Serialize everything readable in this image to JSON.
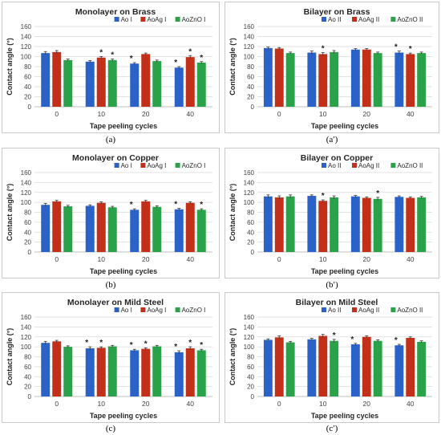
{
  "colors": {
    "ao": "#2a62c8",
    "aoag": "#c3301a",
    "aozno": "#2aa24a",
    "grid": "#d9d9d9",
    "axis": "#595959"
  },
  "chart_data": [
    {
      "type": "bar",
      "panel_label": "(a)",
      "title": "Monolayer on Brass",
      "xlabel": "Tape peeling cycles",
      "ylabel": "Contact  angle (°)",
      "categories": [
        "0",
        "10",
        "20",
        "40"
      ],
      "ylim": [
        0,
        160
      ],
      "yticks": [
        0,
        20,
        40,
        60,
        80,
        100,
        120,
        140,
        160
      ],
      "grid": true,
      "legend_position": "top-right",
      "series": [
        {
          "name": "Ao I",
          "values": [
            107,
            90,
            86,
            78
          ],
          "errors": [
            3,
            2,
            2,
            2
          ],
          "sig": [
            false,
            false,
            true,
            true
          ]
        },
        {
          "name": "AoAg I",
          "values": [
            109,
            98,
            105,
            99
          ],
          "errors": [
            3,
            2,
            2,
            3
          ],
          "sig": [
            false,
            true,
            false,
            true
          ]
        },
        {
          "name": "AoZnO I",
          "values": [
            93,
            93,
            91,
            88
          ],
          "errors": [
            2,
            2,
            2,
            2
          ],
          "sig": [
            false,
            true,
            false,
            true
          ]
        }
      ]
    },
    {
      "type": "bar",
      "panel_label": "(a′)",
      "title": "Bilayer on Brass",
      "xlabel": "Tape peeling cycles",
      "ylabel": "Contact  angle (°)",
      "categories": [
        "0",
        "10",
        "20",
        "40"
      ],
      "ylim": [
        0,
        160
      ],
      "yticks": [
        0,
        20,
        40,
        60,
        80,
        100,
        120,
        140,
        160
      ],
      "grid": true,
      "legend_position": "top-right",
      "series": [
        {
          "name": "Ao II",
          "values": [
            117,
            108,
            114,
            108
          ],
          "errors": [
            2,
            3,
            2,
            3
          ],
          "sig": [
            false,
            false,
            false,
            true
          ]
        },
        {
          "name": "AoAg II",
          "values": [
            116,
            105,
            114,
            105
          ],
          "errors": [
            2,
            3,
            2,
            2
          ],
          "sig": [
            false,
            true,
            false,
            true
          ]
        },
        {
          "name": "AoZnO II",
          "values": [
            107,
            109,
            107,
            107
          ],
          "errors": [
            2,
            3,
            2,
            2
          ],
          "sig": [
            false,
            false,
            false,
            false
          ]
        }
      ]
    },
    {
      "type": "bar",
      "panel_label": "(b)",
      "title": "Monolayer on Copper",
      "xlabel": "Tape peeling cycles",
      "ylabel": "Contact  angle (°)",
      "categories": [
        "0",
        "10",
        "20",
        "40"
      ],
      "ylim": [
        0,
        160
      ],
      "yticks": [
        0,
        20,
        40,
        60,
        80,
        100,
        120,
        140,
        160
      ],
      "grid": true,
      "legend_position": "top-right",
      "series": [
        {
          "name": "Ao I",
          "values": [
            95,
            93,
            85,
            86
          ],
          "errors": [
            3,
            2,
            2,
            2
          ],
          "sig": [
            false,
            false,
            true,
            true
          ]
        },
        {
          "name": "AoAg I",
          "values": [
            102,
            99,
            102,
            99
          ],
          "errors": [
            2,
            2,
            2,
            2
          ],
          "sig": [
            false,
            false,
            false,
            false
          ]
        },
        {
          "name": "AoZnO I",
          "values": [
            92,
            90,
            91,
            85
          ],
          "errors": [
            2,
            2,
            2,
            2
          ],
          "sig": [
            false,
            false,
            false,
            true
          ]
        }
      ]
    },
    {
      "type": "bar",
      "panel_label": "(b′)",
      "title": "Bilayer on Copper",
      "xlabel": "Tape peeling cycles",
      "ylabel": "Contact  angle (°)",
      "categories": [
        "0",
        "10",
        "20",
        "40"
      ],
      "ylim": [
        0,
        160
      ],
      "yticks": [
        0,
        20,
        40,
        60,
        80,
        100,
        120,
        140,
        160
      ],
      "grid": true,
      "legend_position": "top-right",
      "series": [
        {
          "name": "Ao II",
          "values": [
            112,
            113,
            112,
            111
          ],
          "errors": [
            3,
            2,
            2,
            2
          ],
          "sig": [
            false,
            false,
            false,
            false
          ]
        },
        {
          "name": "AoAg II",
          "values": [
            110,
            103,
            109,
            109
          ],
          "errors": [
            3,
            2,
            2,
            2
          ],
          "sig": [
            false,
            true,
            false,
            false
          ]
        },
        {
          "name": "AoZnO II",
          "values": [
            112,
            110,
            107,
            110
          ],
          "errors": [
            3,
            3,
            3,
            2
          ],
          "sig": [
            false,
            false,
            true,
            false
          ]
        }
      ]
    },
    {
      "type": "bar",
      "panel_label": "(c)",
      "title": "Monolayer on Mild Steel",
      "xlabel": "Tape peeling cycles",
      "ylabel": "Contact  angle (°)",
      "categories": [
        "0",
        "10",
        "20",
        "40"
      ],
      "ylim": [
        0,
        160
      ],
      "yticks": [
        0,
        20,
        40,
        60,
        80,
        100,
        120,
        140,
        160
      ],
      "grid": true,
      "legend_position": "top-right",
      "series": [
        {
          "name": "Ao I",
          "values": [
            108,
            97,
            93,
            89
          ],
          "errors": [
            3,
            3,
            2,
            3
          ],
          "sig": [
            false,
            true,
            true,
            true
          ]
        },
        {
          "name": "AoAg I",
          "values": [
            111,
            98,
            96,
            97
          ],
          "errors": [
            2,
            2,
            2,
            3
          ],
          "sig": [
            false,
            true,
            true,
            true
          ]
        },
        {
          "name": "AoZnO I",
          "values": [
            100,
            101,
            101,
            93
          ],
          "errors": [
            2,
            2,
            2,
            2
          ],
          "sig": [
            false,
            false,
            false,
            true
          ]
        }
      ]
    },
    {
      "type": "bar",
      "panel_label": "(c′)",
      "title": "Bilayer on Mild Steel",
      "xlabel": "Tape peeling cycles",
      "ylabel": "Contact  angle (°)",
      "categories": [
        "0",
        "10",
        "20",
        "40"
      ],
      "ylim": [
        0,
        160
      ],
      "yticks": [
        0,
        20,
        40,
        60,
        80,
        100,
        120,
        140,
        160
      ],
      "grid": true,
      "legend_position": "top-right",
      "series": [
        {
          "name": "Ao II",
          "values": [
            114,
            115,
            105,
            103
          ],
          "errors": [
            2,
            2,
            2,
            2
          ],
          "sig": [
            false,
            false,
            true,
            true
          ]
        },
        {
          "name": "AoAg II",
          "values": [
            119,
            122,
            120,
            118
          ],
          "errors": [
            3,
            3,
            2,
            2
          ],
          "sig": [
            false,
            false,
            false,
            false
          ]
        },
        {
          "name": "AoZnO II",
          "values": [
            109,
            112,
            112,
            110
          ],
          "errors": [
            2,
            3,
            2,
            2
          ],
          "sig": [
            false,
            true,
            false,
            false
          ]
        }
      ]
    }
  ]
}
